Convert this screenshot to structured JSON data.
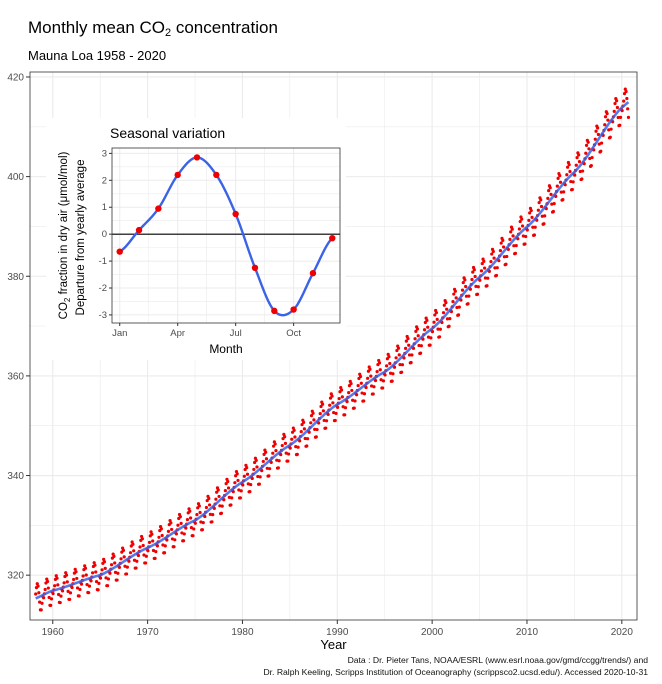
{
  "header": {
    "title_prefix": "Monthly mean CO",
    "title_subscript": "2",
    "title_suffix": " concentration",
    "subtitle": "Mauna Loa 1958 - 2020"
  },
  "caption": {
    "line1": "Data : Dr. Pieter Tans, NOAA/ESRL (www.esrl.noaa.gov/gmd/ccgg/trends/) and",
    "line2": "Dr. Ralph Keeling, Scripps Institution of Oceanography (scrippsco2.ucsd.edu/). Accessed  2020-10-31"
  },
  "colors": {
    "points": "#ee0000",
    "trend": "#3b63e6",
    "grid": "#ebebeb",
    "panel_border": "#333333"
  },
  "chart_data": [
    {
      "id": "main",
      "type": "scatter",
      "title": "Monthly mean CO2 concentration",
      "subtitle": "Mauna Loa 1958 - 2020",
      "xlabel": "Year",
      "ylabel": "CO2 fraction in dry air (μmol/mol)",
      "xlim": [
        1957.6,
        2021.6
      ],
      "ylim": [
        311,
        421
      ],
      "xticks": [
        1960,
        1970,
        1980,
        1990,
        2000,
        2010,
        2020
      ],
      "yticks": [
        320,
        340,
        360,
        380,
        400,
        420
      ],
      "grid": true,
      "legend": "none",
      "x_range": [
        1958.2,
        2020.75
      ],
      "trend_knots": {
        "years": [
          1958,
          1960,
          1965,
          1970,
          1975,
          1980,
          1985,
          1990,
          1995,
          2000,
          2005,
          2010,
          2015,
          2020,
          2020.75
        ],
        "ppm": [
          315.2,
          316.9,
          320.0,
          325.5,
          331.0,
          338.7,
          346.1,
          354.3,
          360.8,
          369.5,
          379.8,
          389.9,
          400.9,
          413.9,
          415.0
        ]
      },
      "seasonal_amplitude": [
        3.5,
        3.5,
        3.5,
        3.5,
        3.5,
        3.5,
        3.5,
        3.5,
        3.5,
        3.5,
        3.5,
        3.5,
        3.5,
        3.5
      ]
    },
    {
      "id": "inset",
      "type": "line",
      "title": "Seasonal variation",
      "xlabel": "Month",
      "ylabel": "Departure from yearly average",
      "xlim": [
        0.6,
        12.4
      ],
      "ylim": [
        -3.3,
        3.2
      ],
      "xticks": [
        1,
        4,
        7,
        10
      ],
      "xticklabels": [
        "Jan",
        "Apr",
        "Jul",
        "Oct"
      ],
      "yticks": [
        -3,
        -2,
        -1,
        0,
        1,
        2,
        3
      ],
      "grid": true,
      "reference_line": 0,
      "months": [
        1,
        2,
        3,
        4,
        5,
        6,
        7,
        8,
        9,
        10,
        11,
        12
      ],
      "values": [
        -0.65,
        0.15,
        0.95,
        2.2,
        2.85,
        2.2,
        0.75,
        -1.25,
        -2.85,
        -2.8,
        -1.45,
        -0.15
      ]
    }
  ]
}
